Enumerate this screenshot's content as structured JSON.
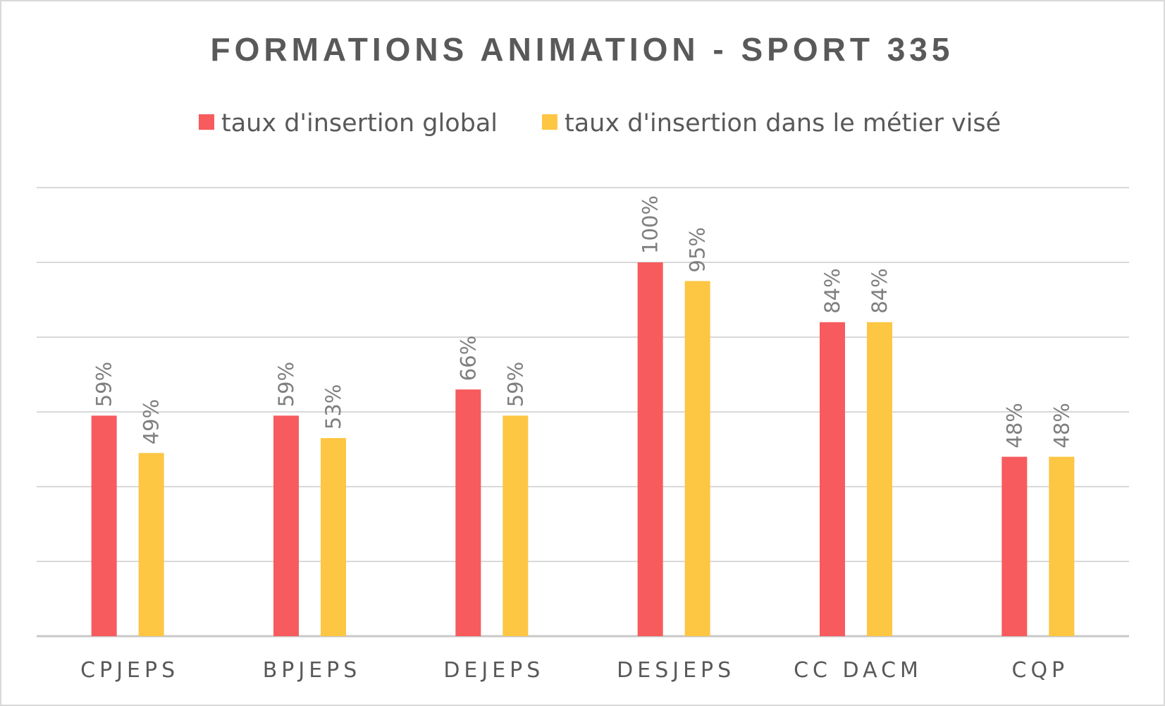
{
  "chart_data": {
    "type": "bar",
    "title": "FORMATIONS ANIMATION - SPORT 335",
    "categories": [
      "CPJEPS",
      "BPJEPS",
      "DEJEPS",
      "DESJEPS",
      "CC DACM",
      "CQP"
    ],
    "series": [
      {
        "name": "taux d'insertion global",
        "color": "#f75b5d",
        "values": [
          59,
          59,
          66,
          100,
          84,
          48
        ],
        "labels": [
          "59%",
          "59%",
          "66%",
          "100%",
          "84%",
          "48%"
        ]
      },
      {
        "name": "taux d'insertion dans le métier visé",
        "color": "#fdc643",
        "values": [
          49,
          53,
          59,
          95,
          84,
          48
        ],
        "labels": [
          "49%",
          "53%",
          "59%",
          "95%",
          "84%",
          "48%"
        ]
      }
    ],
    "ylim": [
      0,
      120
    ],
    "grid": true,
    "legend_position": "top"
  }
}
